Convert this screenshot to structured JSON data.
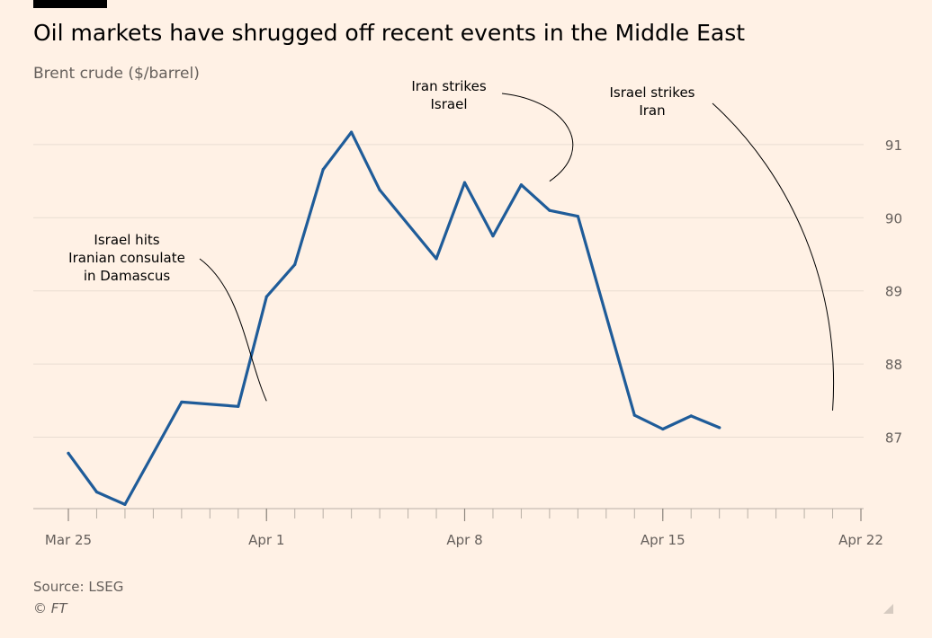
{
  "title": "Oil markets have shrugged off recent events in the Middle East",
  "subtitle": "Brent crude ($/barrel)",
  "source": "Source: LSEG",
  "copyright": "© FT",
  "colors": {
    "background": "#fff1e5",
    "line": "#1f5c99",
    "grid": "#e9ddd2",
    "text": "#66605c"
  },
  "chart_data": {
    "type": "line",
    "title": "Oil markets have shrugged off recent events in the Middle East",
    "ylabel": "Brent crude ($/barrel)",
    "xlabel": "",
    "ylim": [
      86.0,
      91.6
    ],
    "yticks": [
      87,
      88,
      89,
      90,
      91
    ],
    "xlim": [
      0,
      28
    ],
    "xticks": [
      {
        "day": 0,
        "label": "Mar 25"
      },
      {
        "day": 7,
        "label": "Apr 1"
      },
      {
        "day": 14,
        "label": "Apr 8"
      },
      {
        "day": 21,
        "label": "Apr 15"
      },
      {
        "day": 28,
        "label": "Apr 22"
      }
    ],
    "minor_tick_days": [
      0,
      1,
      2,
      3,
      4,
      5,
      6,
      7,
      8,
      9,
      10,
      11,
      12,
      13,
      14,
      15,
      16,
      17,
      18,
      19,
      20,
      21,
      22,
      23,
      24,
      25,
      26,
      27,
      28
    ],
    "grid": true,
    "series": [
      {
        "name": "Brent crude",
        "x": [
          0,
          1,
          2,
          4,
          6,
          7,
          8,
          9,
          10,
          11,
          13,
          14,
          15,
          16,
          17,
          18,
          20,
          21,
          22,
          23,
          24,
          25,
          27,
          28
        ],
        "values": [
          86.78,
          86.25,
          86.08,
          87.48,
          87.42,
          88.92,
          89.36,
          90.66,
          91.17,
          90.38,
          89.44,
          90.48,
          89.75,
          90.45,
          90.1,
          90.02,
          87.3,
          87.11,
          87.29,
          87.13,
          null,
          null,
          null,
          null
        ]
      }
    ],
    "annotations": [
      {
        "text": [
          "Israel hits",
          "Iranian consulate",
          "in Damascus"
        ],
        "day": 7,
        "value": 87.42
      },
      {
        "text": [
          "Iran strikes",
          "Israel"
        ],
        "day": 17,
        "value": 90.45
      },
      {
        "text": [
          "Israel strikes",
          "Iran"
        ],
        "day": 27,
        "value": 87.29
      }
    ]
  }
}
